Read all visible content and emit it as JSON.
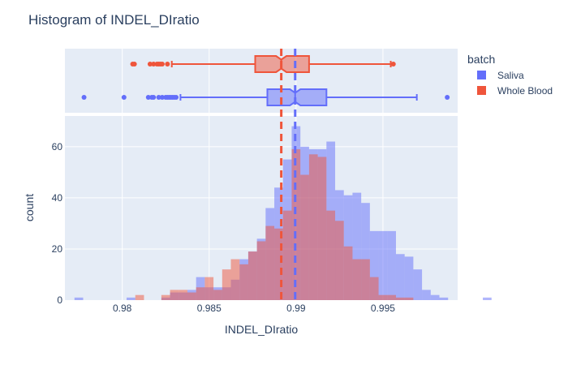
{
  "chart_data": {
    "type": "histogram",
    "title": "Histogram of INDEL_DIratio",
    "xlabel": "INDEL_DIratio",
    "ylabel": "count",
    "xlim": [
      0.9767,
      0.9993
    ],
    "ylim": [
      0,
      72
    ],
    "x_ticks": [
      0.98,
      0.985,
      0.99,
      0.995
    ],
    "x_tick_labels": [
      "0.98",
      "0.985",
      "0.99",
      "0.995"
    ],
    "y_ticks": [
      0,
      20,
      40,
      60
    ],
    "y_tick_labels": [
      "0",
      "20",
      "40",
      "60"
    ],
    "bin_start": 0.97725,
    "bin_width": 0.0005,
    "legend": {
      "title": "batch",
      "position": "right"
    },
    "series": [
      {
        "name": "Saliva",
        "color": "#636efa",
        "counts": [
          1,
          0,
          0,
          0,
          0,
          0,
          1,
          0,
          0,
          0,
          1,
          3,
          3,
          4,
          9,
          5,
          5,
          5,
          8,
          16,
          19,
          24,
          36,
          44,
          55,
          68,
          60,
          59,
          59,
          62,
          43,
          41,
          42,
          38,
          27,
          27,
          27,
          18,
          17,
          12,
          4,
          2,
          1,
          0,
          0,
          0,
          0,
          1
        ],
        "mean_line": 0.98995,
        "box": {
          "min": 0.98335,
          "q1": 0.98835,
          "median": 0.98995,
          "q3": 0.99175,
          "max": 0.99695,
          "notch_low": 0.98965,
          "notch_high": 0.99025,
          "outliers": [
            0.9778,
            0.9801,
            0.9815,
            0.9817,
            0.9818,
            0.9821,
            0.9823,
            0.9825,
            0.9826,
            0.9827,
            0.9828,
            0.9829,
            0.983,
            0.9831,
            0.9987
          ]
        }
      },
      {
        "name": "Whole Blood",
        "color": "#ef553b",
        "counts": [
          0,
          0,
          0,
          0,
          0,
          0,
          0,
          2,
          0,
          0,
          2,
          4,
          4,
          3,
          5,
          9,
          4,
          12,
          16,
          14,
          19,
          23,
          29,
          28,
          35,
          59,
          49,
          57,
          56,
          35,
          31,
          21,
          16,
          16,
          9,
          2,
          2,
          1,
          1,
          0,
          0,
          0,
          0,
          0,
          0,
          0,
          0,
          0
        ],
        "mean_line": 0.98915,
        "box": {
          "min": 0.98285,
          "q1": 0.98765,
          "median": 0.98915,
          "q3": 0.99075,
          "max": 0.99545,
          "notch_low": 0.98885,
          "notch_high": 0.98945,
          "outliers": [
            0.9806,
            0.9807,
            0.9816,
            0.9818,
            0.982,
            0.9821,
            0.9822,
            0.9823,
            0.9826,
            0.9956
          ]
        }
      }
    ]
  }
}
